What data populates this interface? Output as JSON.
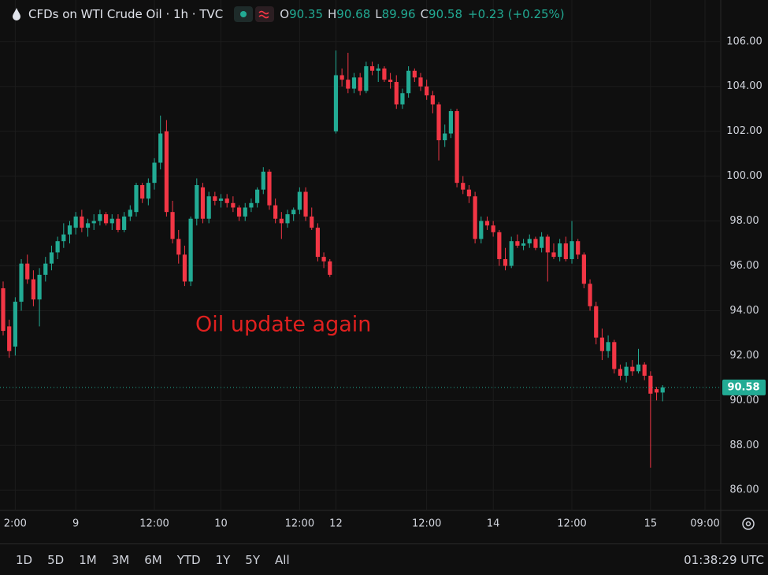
{
  "chart_data": {
    "type": "candlestick",
    "title": "CFDs on WTI Crude Oil · 1h · TVC",
    "ohlc": {
      "labels": [
        "O",
        "H",
        "L",
        "C"
      ],
      "values": [
        90.35,
        90.68,
        89.96,
        90.58
      ],
      "change": "+0.23 (+0.25%)"
    },
    "annotation": "Oil update again",
    "up_color": "#22ab94",
    "down_color": "#f23645",
    "grid": true,
    "ylim": [
      85.2,
      106.8
    ],
    "yticks": [
      {
        "value": 86,
        "label": "86.00"
      },
      {
        "value": 88,
        "label": "88.00"
      },
      {
        "value": 90,
        "label": "90.00"
      },
      {
        "value": 92,
        "label": "92.00"
      },
      {
        "value": 94,
        "label": "94.00"
      },
      {
        "value": 96,
        "label": "96.00"
      },
      {
        "value": 98,
        "label": "98.00"
      },
      {
        "value": 100,
        "label": "100.00"
      },
      {
        "value": 102,
        "label": "102.00"
      },
      {
        "value": 104,
        "label": "104.00"
      },
      {
        "value": 106,
        "label": "106.00"
      }
    ],
    "categories": [
      null,
      null,
      "2:00",
      null,
      null,
      null,
      null,
      null,
      null,
      null,
      null,
      null,
      "9",
      null,
      null,
      null,
      null,
      null,
      null,
      null,
      null,
      null,
      null,
      null,
      null,
      "12:00",
      null,
      null,
      null,
      null,
      null,
      null,
      null,
      null,
      null,
      null,
      "10",
      null,
      null,
      null,
      null,
      null,
      null,
      null,
      null,
      null,
      null,
      null,
      null,
      "12:00",
      null,
      null,
      null,
      null,
      null,
      "12",
      null,
      null,
      null,
      null,
      null,
      null,
      null,
      null,
      null,
      null,
      null,
      null,
      null,
      null,
      "12:00",
      null,
      null,
      null,
      null,
      null,
      null,
      null,
      null,
      null,
      null,
      "14",
      null,
      null,
      null,
      null,
      null,
      null,
      null,
      null,
      null,
      null,
      null,
      null,
      "12:00",
      null,
      null,
      null,
      null,
      null,
      null,
      null,
      null,
      null,
      null,
      null,
      null,
      "15",
      null,
      null,
      null,
      null,
      null,
      null,
      null,
      null,
      "09:00"
    ],
    "open": [
      95.0,
      93.3,
      92.4,
      94.4,
      96.1,
      95.4,
      94.5,
      95.6,
      96.1,
      96.6,
      97.1,
      97.4,
      97.7,
      98.2,
      97.7,
      97.9,
      98.0,
      98.3,
      97.9,
      98.1,
      97.6,
      98.2,
      98.4,
      99.6,
      99.0,
      99.7,
      100.6,
      102.0,
      98.4,
      97.2,
      96.5,
      95.3,
      98.1,
      99.5,
      98.1,
      99.1,
      98.9,
      99.0,
      98.8,
      98.6,
      98.2,
      98.6,
      98.8,
      99.4,
      100.2,
      98.7,
      98.1,
      97.9,
      98.3,
      98.5,
      99.3,
      98.2,
      97.7,
      96.4,
      96.2,
      102.0,
      104.5,
      104.3,
      103.9,
      104.4,
      103.8,
      104.9,
      104.7,
      104.8,
      104.3,
      104.2,
      103.2,
      103.7,
      104.7,
      104.4,
      104.0,
      103.6,
      103.2,
      101.6,
      101.9,
      102.9,
      99.7,
      99.4,
      99.1,
      97.2,
      98.0,
      97.8,
      97.5,
      96.3,
      96.0,
      97.1,
      96.9,
      97.0,
      97.2,
      96.8,
      97.3,
      96.6,
      96.4,
      97.0,
      96.3,
      97.1,
      96.5,
      95.2,
      94.2,
      92.8,
      92.2,
      92.6,
      91.4,
      91.1,
      91.5,
      91.3,
      91.6,
      91.1,
      90.5,
      90.35,
      null,
      null,
      null,
      null,
      null,
      null,
      null
    ],
    "high": [
      95.3,
      93.6,
      94.6,
      96.3,
      96.5,
      95.8,
      95.9,
      96.4,
      96.9,
      97.3,
      97.9,
      98.0,
      98.4,
      98.5,
      98.1,
      98.3,
      98.5,
      98.4,
      98.3,
      98.3,
      98.4,
      98.7,
      99.7,
      99.7,
      99.9,
      100.8,
      102.7,
      102.5,
      98.9,
      97.6,
      96.9,
      98.2,
      99.9,
      99.7,
      99.3,
      99.3,
      99.2,
      99.2,
      99.1,
      98.7,
      98.8,
      99.0,
      99.5,
      100.4,
      100.3,
      99.0,
      98.4,
      98.5,
      98.6,
      99.5,
      99.5,
      98.6,
      97.9,
      96.6,
      96.3,
      105.6,
      104.8,
      105.5,
      104.6,
      104.6,
      105.1,
      105.1,
      105.0,
      104.9,
      104.6,
      104.5,
      103.9,
      104.9,
      104.8,
      104.6,
      104.3,
      103.8,
      103.3,
      102.3,
      103.0,
      103.0,
      100.0,
      99.6,
      99.3,
      98.2,
      98.2,
      98.0,
      97.6,
      96.8,
      97.3,
      97.4,
      97.2,
      97.4,
      97.3,
      97.5,
      97.4,
      97.0,
      97.2,
      97.3,
      98.0,
      97.2,
      96.6,
      95.4,
      94.4,
      93.2,
      92.9,
      92.7,
      91.6,
      91.7,
      91.8,
      92.3,
      91.7,
      91.3,
      90.6,
      90.68,
      null,
      null,
      null,
      null,
      null,
      null,
      null
    ],
    "low": [
      92.9,
      91.9,
      92.0,
      94.0,
      95.2,
      94.2,
      93.3,
      95.3,
      95.8,
      96.3,
      96.8,
      97.0,
      97.4,
      97.5,
      97.3,
      97.6,
      97.8,
      97.8,
      97.6,
      97.5,
      97.5,
      98.0,
      98.2,
      98.8,
      98.7,
      99.4,
      100.3,
      98.2,
      97.0,
      96.1,
      95.1,
      95.1,
      97.8,
      97.9,
      97.9,
      98.7,
      98.6,
      98.6,
      98.4,
      98.0,
      98.0,
      98.4,
      98.6,
      99.2,
      98.5,
      97.9,
      97.2,
      97.7,
      98.0,
      98.3,
      98.0,
      97.6,
      96.2,
      95.9,
      95.5,
      101.9,
      104.0,
      103.7,
      103.7,
      103.6,
      103.7,
      104.5,
      104.2,
      104.2,
      103.9,
      103.0,
      103.0,
      103.5,
      104.2,
      103.8,
      103.4,
      102.8,
      100.7,
      101.3,
      101.7,
      99.5,
      99.2,
      98.8,
      97.0,
      97.0,
      97.6,
      97.3,
      96.0,
      95.8,
      95.9,
      96.8,
      96.7,
      96.8,
      96.7,
      96.6,
      95.3,
      96.3,
      96.2,
      96.2,
      96.1,
      96.3,
      95.0,
      94.0,
      92.5,
      91.8,
      91.9,
      91.2,
      90.9,
      90.8,
      91.1,
      91.2,
      90.9,
      87.0,
      90.0,
      89.96,
      null,
      null,
      null,
      null,
      null,
      null,
      null
    ],
    "close": [
      93.1,
      92.2,
      94.4,
      96.1,
      95.4,
      94.5,
      95.6,
      96.1,
      96.6,
      97.1,
      97.4,
      97.8,
      98.2,
      97.7,
      97.9,
      98.0,
      98.3,
      97.9,
      98.1,
      97.6,
      98.2,
      98.5,
      99.6,
      99.0,
      99.7,
      100.6,
      101.9,
      98.4,
      97.2,
      96.5,
      95.3,
      98.1,
      99.6,
      98.1,
      99.1,
      98.9,
      99.0,
      98.8,
      98.6,
      98.2,
      98.6,
      98.8,
      99.4,
      100.2,
      98.7,
      98.1,
      97.9,
      98.3,
      98.5,
      99.3,
      98.2,
      97.7,
      96.4,
      96.2,
      95.6,
      104.5,
      104.3,
      103.9,
      104.4,
      103.8,
      104.9,
      104.7,
      104.8,
      104.3,
      104.2,
      103.2,
      103.7,
      104.7,
      104.4,
      104.0,
      103.6,
      103.2,
      101.6,
      101.9,
      102.9,
      99.7,
      99.4,
      99.1,
      97.2,
      98.0,
      97.8,
      97.5,
      96.3,
      96.0,
      97.1,
      96.9,
      97.0,
      97.2,
      96.8,
      97.3,
      96.6,
      96.4,
      97.0,
      96.3,
      97.1,
      96.5,
      95.2,
      94.2,
      92.8,
      92.2,
      92.6,
      91.4,
      91.1,
      91.5,
      91.3,
      91.6,
      91.1,
      90.3,
      90.35,
      90.58,
      null,
      null,
      null,
      null,
      null,
      null,
      null
    ]
  },
  "toolbar": {
    "ranges": [
      "1D",
      "5D",
      "1M",
      "3M",
      "6M",
      "YTD",
      "1Y",
      "5Y",
      "All"
    ],
    "clock": "01:38:29 UTC"
  }
}
